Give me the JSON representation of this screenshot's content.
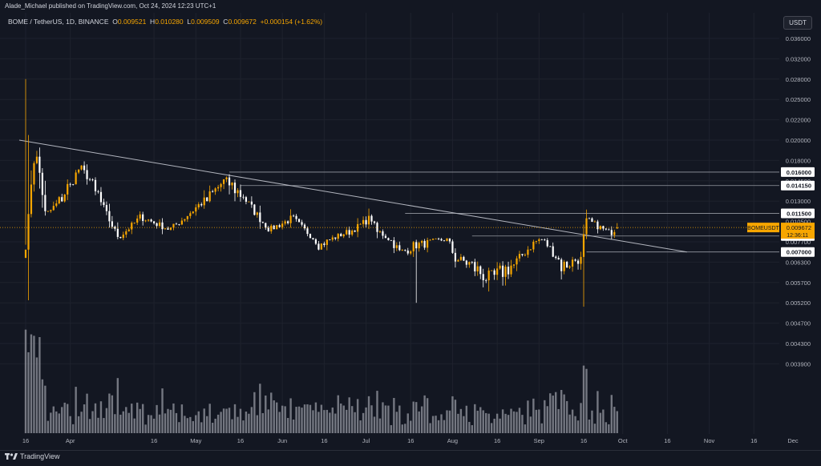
{
  "header": {
    "published": "Alade_Michael published on TradingView.com, Oct 24, 2024 12:23 UTC+1",
    "symbol": "BOME / TetherUS, 1D, BINANCE",
    "ohlc": {
      "o_label": "O",
      "o": "0.009521",
      "h_label": "H",
      "h": "0.010280",
      "l_label": "L",
      "l": "0.009509",
      "c_label": "C",
      "c": "0.009672",
      "change": "+0.000154 (+1.62%)"
    }
  },
  "currency_button": "USDT",
  "footer": {
    "brand": "TradingView"
  },
  "colors": {
    "background": "#131722",
    "up": "#f7a600",
    "down": "#ffffff",
    "grid": "#1e222d",
    "trendline": "#b2b5be",
    "level": "#9598a1",
    "volume": "#9598a1"
  },
  "chart_data": {
    "type": "candlestick",
    "y_ticks": [
      "0.036000",
      "0.032000",
      "0.028000",
      "0.025000",
      "0.022000",
      "0.020000",
      "0.018000",
      "0.014500",
      "0.013000",
      "0.010500",
      "0.007700",
      "0.006300",
      "0.005700",
      "0.005200",
      "0.004700",
      "0.004300",
      "0.003900"
    ],
    "x_ticks": [
      "16",
      "Apr",
      "16",
      "May",
      "16",
      "Jun",
      "16",
      "Jul",
      "16",
      "Aug",
      "16",
      "Sep",
      "16",
      "Oct",
      "16",
      "Nov",
      "16",
      "Dec"
    ],
    "levels": [
      {
        "value": "0.016000",
        "from": "2024-05-28"
      },
      {
        "value": "0.014150",
        "from": "2024-06-01"
      },
      {
        "value": "0.011500",
        "from": "2024-07-30"
      },
      {
        "value": "0.008500",
        "from": "2024-08-23"
      },
      {
        "value": "0.007000",
        "from": "2024-10-03"
      }
    ],
    "trendline": {
      "from": {
        "date": "2024-03-16",
        "value": 0.02
      },
      "to": {
        "date": "2024-11-08",
        "value": 0.007
      }
    },
    "last_price": {
      "symbol": "BOMEUSDT",
      "value": "0.009672",
      "countdown": "12:36:11"
    },
    "volume_series_label": "",
    "segments": [
      {
        "days": 4,
        "start": 0.0075,
        "end": 0.018
      },
      {
        "days": 4,
        "start": 0.018,
        "end": 0.0115
      },
      {
        "days": 8,
        "start": 0.0115,
        "end": 0.014
      },
      {
        "days": 4,
        "start": 0.014,
        "end": 0.0165
      },
      {
        "days": 6,
        "start": 0.0165,
        "end": 0.0135
      },
      {
        "days": 8,
        "start": 0.0135,
        "end": 0.0085
      },
      {
        "days": 8,
        "start": 0.0085,
        "end": 0.011
      },
      {
        "days": 10,
        "start": 0.011,
        "end": 0.0095
      },
      {
        "days": 12,
        "start": 0.0095,
        "end": 0.0128
      },
      {
        "days": 8,
        "start": 0.0128,
        "end": 0.0145
      },
      {
        "days": 6,
        "start": 0.0145,
        "end": 0.0135
      },
      {
        "days": 10,
        "start": 0.0135,
        "end": 0.0095
      },
      {
        "days": 8,
        "start": 0.0095,
        "end": 0.0108
      },
      {
        "days": 10,
        "start": 0.0108,
        "end": 0.0075
      },
      {
        "days": 10,
        "start": 0.0075,
        "end": 0.009
      },
      {
        "days": 8,
        "start": 0.009,
        "end": 0.0108
      },
      {
        "days": 3,
        "start": 0.0108,
        "end": 0.009
      },
      {
        "days": 8,
        "start": 0.009,
        "end": 0.007
      },
      {
        "days": 6,
        "start": 0.007,
        "end": 0.0075
      },
      {
        "days": 10,
        "start": 0.0075,
        "end": 0.008
      },
      {
        "days": 4,
        "start": 0.008,
        "end": 0.0065
      },
      {
        "days": 12,
        "start": 0.0065,
        "end": 0.0058
      },
      {
        "days": 8,
        "start": 0.0058,
        "end": 0.0062
      },
      {
        "days": 10,
        "start": 0.0062,
        "end": 0.008
      },
      {
        "days": 8,
        "start": 0.008,
        "end": 0.0062
      },
      {
        "days": 6,
        "start": 0.0062,
        "end": 0.0065
      },
      {
        "days": 3,
        "start": 0.0065,
        "end": 0.0105
      },
      {
        "days": 8,
        "start": 0.0105,
        "end": 0.009
      },
      {
        "days": 3,
        "start": 0.009,
        "end": 0.0097
      }
    ]
  }
}
